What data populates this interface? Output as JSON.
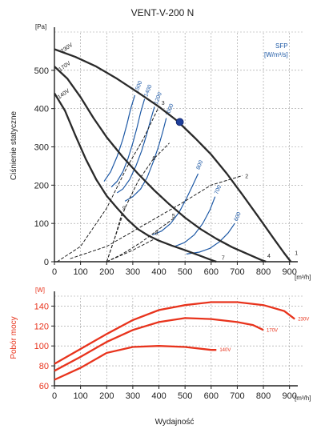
{
  "title": "VENT-V-200 N",
  "xlabel": "Wydajność",
  "chart_data": [
    {
      "type": "line",
      "ylabel": "Ciśnienie statyczne",
      "y_unit": "[Pa]",
      "x_unit": "[m³/h]",
      "xlim": [
        0,
        950
      ],
      "ylim": [
        0,
        600
      ],
      "x_ticks": [
        "0",
        "100",
        "200",
        "300",
        "400",
        "500",
        "600",
        "700",
        "800",
        "900"
      ],
      "y_ticks": [
        "0",
        "100",
        "200",
        "300",
        "400",
        "500"
      ],
      "grid": true,
      "legend_box": {
        "title": "SFP",
        "unit": "[W/m³/s]"
      },
      "series": [
        {
          "name": "230V",
          "label_at": [
            30,
            545
          ],
          "points": [
            [
              0,
              555
            ],
            [
              80,
              535
            ],
            [
              160,
              510
            ],
            [
              240,
              478
            ],
            [
              320,
              442
            ],
            [
              400,
              405
            ],
            [
              470,
              368
            ],
            [
              540,
              322
            ],
            [
              600,
              280
            ],
            [
              660,
              230
            ],
            [
              720,
              175
            ],
            [
              780,
              118
            ],
            [
              840,
              60
            ],
            [
              880,
              22
            ],
            [
              905,
              0
            ]
          ]
        },
        {
          "name": "170V",
          "label_at": [
            22,
            497
          ],
          "points": [
            [
              0,
              510
            ],
            [
              50,
              478
            ],
            [
              100,
              430
            ],
            [
              150,
              375
            ],
            [
              200,
              325
            ],
            [
              260,
              275
            ],
            [
              320,
              230
            ],
            [
              380,
              188
            ],
            [
              440,
              150
            ],
            [
              500,
              115
            ],
            [
              560,
              85
            ],
            [
              620,
              60
            ],
            [
              680,
              38
            ],
            [
              740,
              20
            ],
            [
              790,
              5
            ],
            [
              810,
              0
            ]
          ]
        },
        {
          "name": "140V",
          "label_at": [
            18,
            425
          ],
          "points": [
            [
              0,
              440
            ],
            [
              40,
              395
            ],
            [
              80,
              330
            ],
            [
              120,
              268
            ],
            [
              160,
              215
            ],
            [
              200,
              172
            ],
            [
              240,
              140
            ],
            [
              280,
              110
            ],
            [
              320,
              85
            ],
            [
              360,
              68
            ],
            [
              400,
              55
            ],
            [
              450,
              42
            ],
            [
              500,
              30
            ],
            [
              560,
              15
            ],
            [
              610,
              2
            ],
            [
              620,
              0
            ]
          ]
        }
      ],
      "sfp_curves": [
        {
          "label": "1500",
          "label_at": [
            318,
            440
          ],
          "points": [
            [
              308,
              435
            ],
            [
              292,
              400
            ],
            [
              278,
              360
            ],
            [
              262,
              320
            ],
            [
              240,
              275
            ],
            [
              215,
              235
            ],
            [
              190,
              210
            ]
          ]
        },
        {
          "label": "1400",
          "label_at": [
            355,
            430
          ],
          "points": [
            [
              345,
              425
            ],
            [
              330,
              390
            ],
            [
              316,
              350
            ],
            [
              300,
              310
            ],
            [
              282,
              270
            ],
            [
              262,
              235
            ],
            [
              240,
              210
            ],
            [
              218,
              195
            ]
          ]
        },
        {
          "label": "1200",
          "label_at": [
            393,
            410
          ],
          "points": [
            [
              383,
              405
            ],
            [
              368,
              370
            ],
            [
              352,
              330
            ],
            [
              334,
              290
            ],
            [
              312,
              250
            ],
            [
              288,
              215
            ],
            [
              262,
              190
            ],
            [
              240,
              180
            ]
          ]
        },
        {
          "label": "1000",
          "label_at": [
            438,
            380
          ],
          "points": [
            [
              428,
              375
            ],
            [
              415,
              340
            ],
            [
              398,
              300
            ],
            [
              378,
              260
            ],
            [
              355,
              220
            ],
            [
              330,
              190
            ],
            [
              300,
              170
            ],
            [
              270,
              158
            ]
          ]
        },
        {
          "label": "800",
          "label_at": [
            555,
            240
          ],
          "points": [
            [
              550,
              230
            ],
            [
              530,
              200
            ],
            [
              505,
              165
            ],
            [
              478,
              130
            ],
            [
              445,
              100
            ],
            [
              410,
              80
            ],
            [
              375,
              70
            ]
          ]
        },
        {
          "label": "700",
          "label_at": [
            625,
            175
          ],
          "points": [
            [
              615,
              170
            ],
            [
              595,
              135
            ],
            [
              568,
              100
            ],
            [
              535,
              70
            ],
            [
              498,
              50
            ],
            [
              460,
              40
            ]
          ]
        },
        {
          "label": "600",
          "label_at": [
            700,
            105
          ],
          "points": [
            [
              690,
              100
            ],
            [
              665,
              75
            ],
            [
              632,
              52
            ],
            [
              595,
              35
            ],
            [
              555,
              25
            ],
            [
              505,
              20
            ]
          ]
        }
      ],
      "system_curves": [
        {
          "label": "1",
          "label_at": [
            920,
            18
          ],
          "points": [
            [
              0,
              0
            ],
            [
              905,
              0
            ]
          ]
        },
        {
          "label": "2",
          "label_at": [
            730,
            218
          ],
          "points": [
            [
              60,
              8
            ],
            [
              200,
              40
            ],
            [
              340,
              95
            ],
            [
              480,
              150
            ],
            [
              600,
              200
            ],
            [
              720,
              225
            ]
          ]
        },
        {
          "label": "3",
          "label_at": [
            410,
            410
          ],
          "points": [
            [
              10,
              0
            ],
            [
              100,
              40
            ],
            [
              200,
              140
            ],
            [
              280,
              250
            ],
            [
              340,
              320
            ],
            [
              400,
              405
            ]
          ]
        },
        {
          "label": "4",
          "label_at": [
            815,
            10
          ],
          "points": [
            [
              0,
              0
            ],
            [
              810,
              0
            ]
          ]
        },
        {
          "label": "5",
          "label_at": [
            450,
            115
          ],
          "points": [
            [
              200,
              0
            ],
            [
              260,
              20
            ],
            [
              330,
              50
            ],
            [
              400,
              85
            ],
            [
              460,
              115
            ]
          ]
        },
        {
          "label": "6",
          "label_at": [
            375,
            265
          ],
          "points": [
            [
              200,
              0
            ],
            [
              230,
              60
            ],
            [
              270,
              140
            ],
            [
              320,
              210
            ],
            [
              375,
              265
            ],
            [
              440,
              310
            ]
          ]
        },
        {
          "label": "7",
          "label_at": [
            640,
            5
          ],
          "points": [
            [
              0,
              0
            ],
            [
              620,
              0
            ]
          ]
        },
        {
          "label": "8",
          "label_at": [
            385,
            70
          ],
          "points": [
            [
              200,
              0
            ],
            [
              300,
              30
            ],
            [
              385,
              60
            ]
          ]
        },
        {
          "label": "9",
          "label_at": [
            260,
            135
          ],
          "points": [
            [
              200,
              0
            ],
            [
              230,
              60
            ],
            [
              260,
              130
            ]
          ]
        }
      ],
      "operating_point": [
        480,
        365
      ]
    },
    {
      "type": "line",
      "ylabel": "Pobór mocy",
      "y_unit": "[W]",
      "x_unit": "[m³/h]",
      "xlim": [
        0,
        950
      ],
      "ylim": [
        60,
        150
      ],
      "x_ticks": [
        "0",
        "100",
        "200",
        "300",
        "400",
        "500",
        "600",
        "700",
        "800",
        "900"
      ],
      "y_ticks": [
        "60",
        "80",
        "100",
        "120",
        "140"
      ],
      "grid": true,
      "series": [
        {
          "name": "230V",
          "points": [
            [
              0,
              82
            ],
            [
              100,
              97
            ],
            [
              200,
              112
            ],
            [
              300,
              126
            ],
            [
              400,
              136
            ],
            [
              500,
              141
            ],
            [
              600,
              144
            ],
            [
              700,
              144
            ],
            [
              800,
              141
            ],
            [
              880,
              135
            ],
            [
              920,
              127
            ]
          ]
        },
        {
          "name": "170V",
          "points": [
            [
              0,
              75
            ],
            [
              100,
              89
            ],
            [
              200,
              104
            ],
            [
              300,
              116
            ],
            [
              400,
              124
            ],
            [
              500,
              128
            ],
            [
              600,
              127
            ],
            [
              700,
              124
            ],
            [
              760,
              121
            ],
            [
              800,
              116
            ]
          ]
        },
        {
          "name": "140V",
          "points": [
            [
              0,
              66
            ],
            [
              100,
              78
            ],
            [
              200,
              93
            ],
            [
              300,
              99
            ],
            [
              400,
              100
            ],
            [
              500,
              99
            ],
            [
              600,
              96
            ],
            [
              620,
              96
            ]
          ]
        }
      ]
    }
  ]
}
